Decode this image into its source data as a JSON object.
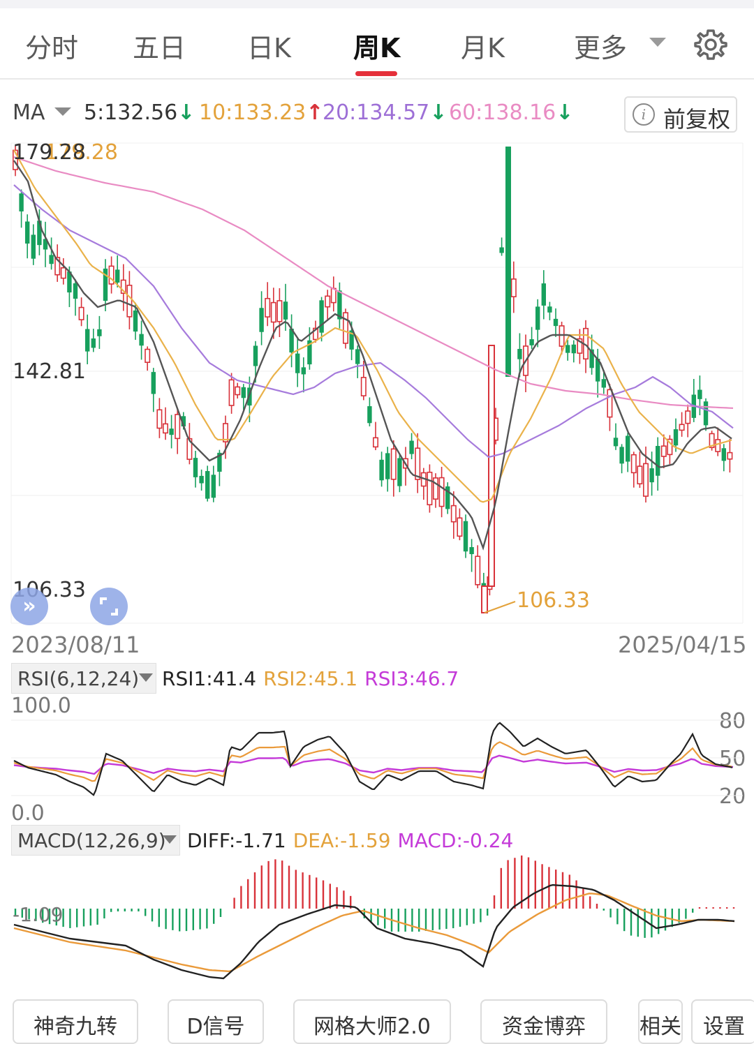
{
  "tabs": [
    {
      "label": "分时"
    },
    {
      "label": "五日"
    },
    {
      "label": "日K"
    },
    {
      "label": "周K"
    },
    {
      "label": "月K"
    },
    {
      "label": "更多"
    }
  ],
  "active_tab": "周K",
  "icons": {
    "settings": "gear-icon",
    "more_caret": "caret-down-icon",
    "info": "info-icon",
    "expand_left": "double-chevron-icon",
    "fullscreen": "fullscreen-icon"
  },
  "ma": {
    "label": "MA",
    "ma5": "5:132.56",
    "ma5_arrow": "↓",
    "ma10": "10:133.23",
    "ma10_arrow": "↑",
    "ma20": "20:134.57",
    "ma20_arrow": "↓",
    "ma60": "60:138.16",
    "ma60_arrow": "↓",
    "adjust_label": "前复权",
    "colors": {
      "ma5": "#333333",
      "ma10": "#e3a23b",
      "ma20": "#9d6fd6",
      "ma60": "#e98bc3",
      "up": "#d8323a",
      "down": "#17a05d",
      "arrow_up": "#d8323a",
      "arrow_down": "#17a05d"
    }
  },
  "price_axis": {
    "high": "179.28",
    "mid": "142.81",
    "low": "106.33"
  },
  "chart_marks": {
    "high_label": "179.28",
    "low_label": "106.33"
  },
  "dates": {
    "start": "2023/08/11",
    "end": "2025/04/15"
  },
  "rsi": {
    "selector": "RSI(6,12,24)",
    "rsi1": "RSI1:41.4",
    "rsi2": "RSI2:45.1",
    "rsi3": "RSI3:46.7",
    "axis_top": "100.0",
    "axis_bottom": "0.0",
    "levels": [
      "80",
      "50",
      "20"
    ]
  },
  "macd": {
    "selector": "MACD(12,26,9)",
    "diff": "DIFF:-1.71",
    "dea": "DEA:-1.59",
    "macd": "MACD:-0.24",
    "axis_label": "-1.09"
  },
  "tools": [
    "神奇九转",
    "D信号",
    "网格大师2.0",
    "资金博弈",
    "相关",
    "设置"
  ]
}
